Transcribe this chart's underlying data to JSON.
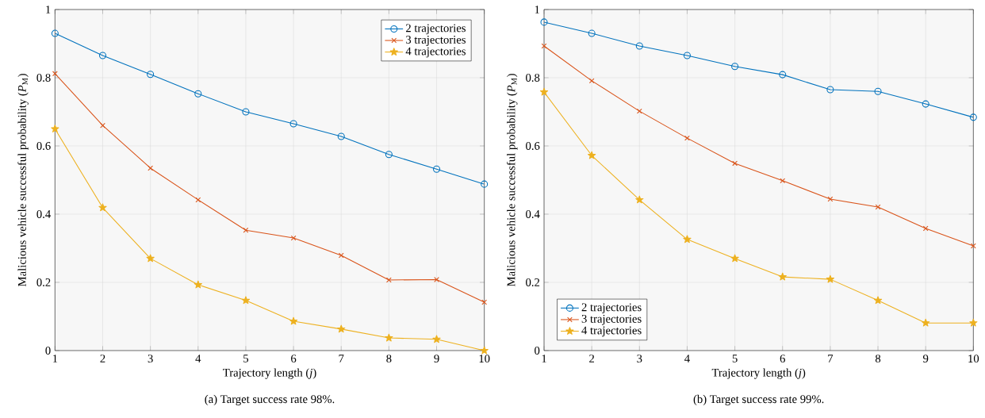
{
  "chart_data": [
    {
      "type": "line",
      "xlabel": "Trajectory length (*j*)",
      "ylabel": "Malicious vehicle successful probability (*P*$_{M}$)",
      "x": [
        1,
        2,
        3,
        4,
        5,
        6,
        7,
        8,
        9,
        10
      ],
      "xlim": [
        1,
        10
      ],
      "xticks": [
        1,
        2,
        3,
        4,
        5,
        6,
        7,
        8,
        9,
        10
      ],
      "ylim": [
        0,
        1
      ],
      "yticks": [
        0,
        0.2,
        0.4,
        0.6,
        0.8,
        1
      ],
      "grid": true,
      "legend": "top right",
      "line_style": "solid",
      "annotations": [
        "(a) Target success rate 98%."
      ],
      "series": [
        {
          "name": "2 trajectories",
          "color": "#0072bd",
          "marker": "circle",
          "values": [
            0.93,
            0.865,
            0.81,
            0.753,
            0.7,
            0.665,
            0.628,
            0.575,
            0.532,
            0.488
          ]
        },
        {
          "name": "3 trajectories",
          "color": "#d95319",
          "marker": "cross",
          "values": [
            0.812,
            0.66,
            0.535,
            0.442,
            0.353,
            0.33,
            0.279,
            0.207,
            0.208,
            0.142
          ]
        },
        {
          "name": "4 trajectories",
          "color": "#edb120",
          "marker": "star",
          "values": [
            0.65,
            0.419,
            0.27,
            0.193,
            0.147,
            0.086,
            0.063,
            0.037,
            0.033,
            0.0
          ]
        }
      ]
    },
    {
      "type": "line",
      "xlabel": "Trajectory length (*j*)",
      "ylabel": "Malicious vehicle successful probability (*P*$_{M}$)",
      "x": [
        1,
        2,
        3,
        4,
        5,
        6,
        7,
        8,
        9,
        10
      ],
      "xlim": [
        1,
        10
      ],
      "xticks": [
        1,
        2,
        3,
        4,
        5,
        6,
        7,
        8,
        9,
        10
      ],
      "ylim": [
        0,
        1
      ],
      "yticks": [
        0,
        0.2,
        0.4,
        0.6,
        0.8,
        1
      ],
      "grid": true,
      "legend": "bottom left",
      "line_style": "solid",
      "annotations": [
        "(b) Target success rate 99%."
      ],
      "series": [
        {
          "name": "2 trajectories",
          "color": "#0072bd",
          "marker": "circle",
          "values": [
            0.963,
            0.93,
            0.893,
            0.865,
            0.833,
            0.809,
            0.765,
            0.76,
            0.723,
            0.684
          ]
        },
        {
          "name": "3 trajectories",
          "color": "#d95319",
          "marker": "cross",
          "values": [
            0.893,
            0.791,
            0.702,
            0.623,
            0.549,
            0.498,
            0.444,
            0.421,
            0.358,
            0.307
          ]
        },
        {
          "name": "4 trajectories",
          "color": "#edb120",
          "marker": "star",
          "values": [
            0.758,
            0.572,
            0.442,
            0.326,
            0.27,
            0.216,
            0.209,
            0.147,
            0.081,
            0.081
          ]
        }
      ]
    }
  ]
}
